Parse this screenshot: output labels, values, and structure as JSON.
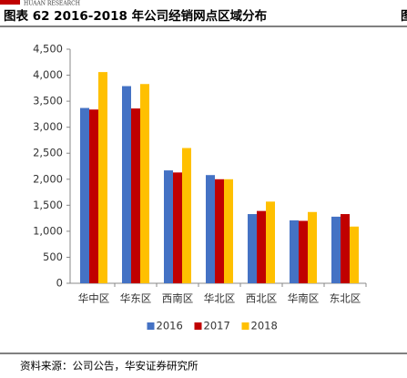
{
  "header": {
    "brand": "HUAAN RESEARCH",
    "fragment": "图"
  },
  "chart_data": {
    "type": "bar",
    "title": "图表 62 2016-2018 年公司经销网点区域分布",
    "categories": [
      "华中区",
      "华东区",
      "西南区",
      "华北区",
      "西北区",
      "华南区",
      "东北区"
    ],
    "series": [
      {
        "name": "2016",
        "color": "#4472c4",
        "values": [
          3370,
          3790,
          2170,
          2080,
          1330,
          1210,
          1280
        ]
      },
      {
        "name": "2017",
        "color": "#c00000",
        "values": [
          3340,
          3360,
          2130,
          2000,
          1390,
          1200,
          1330
        ]
      },
      {
        "name": "2018",
        "color": "#ffc000",
        "values": [
          4060,
          3830,
          2600,
          2000,
          1570,
          1370,
          1090
        ]
      }
    ],
    "ylim": [
      0,
      4500
    ],
    "yticks": [
      0,
      500,
      {
        "value": 1000,
        "label": "1,000"
      },
      {
        "value": 1500,
        "label": "1,500"
      },
      {
        "value": 2000,
        "label": "2,000"
      },
      {
        "value": 2500,
        "label": "2,500"
      },
      {
        "value": 3000,
        "label": "3,000"
      },
      {
        "value": 3500,
        "label": "3,500"
      },
      {
        "value": 4000,
        "label": "4,000"
      },
      {
        "value": 4500,
        "label": "4,500"
      }
    ],
    "grid": false,
    "legend": "bottom"
  },
  "footer": {
    "source": "资料来源：公司公告，华安证券研究所"
  }
}
